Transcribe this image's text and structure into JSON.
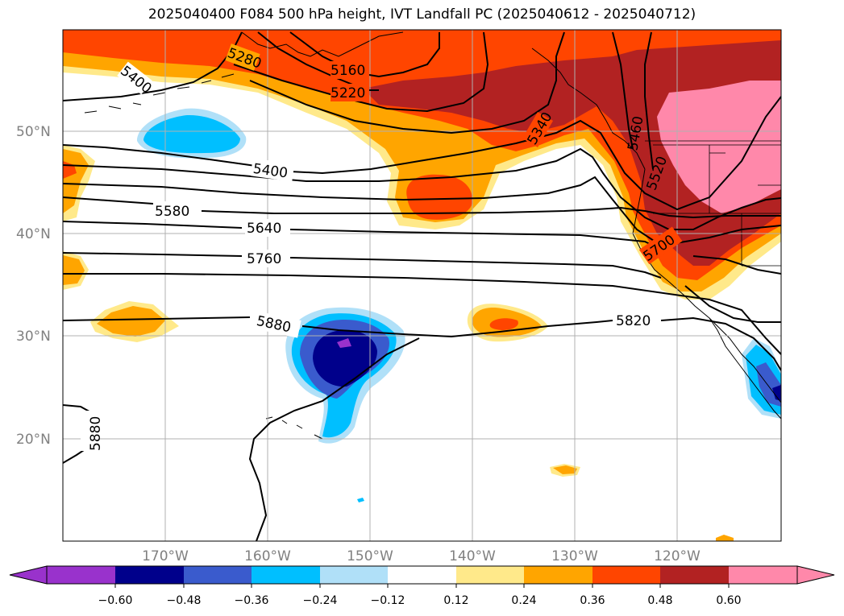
{
  "title": "2025040400 F084 500 hPa height, IVT Landfall PC (2025040612 - 2025040712)",
  "map": {
    "latitude_labels": [
      "50°N",
      "40°N",
      "30°N",
      "20°N"
    ],
    "longitude_labels": [
      "170°W",
      "160°W",
      "150°W",
      "140°W",
      "130°W",
      "120°W"
    ],
    "height_contour_labels": [
      "5400",
      "5280",
      "5160",
      "5220",
      "5340",
      "5460",
      "5520",
      "5400",
      "5580",
      "5640",
      "5700",
      "5760",
      "5880",
      "5820",
      "5880"
    ],
    "gridlines": true
  },
  "colorbar": {
    "tick_labels": [
      "−0.60",
      "−0.48",
      "−0.36",
      "−0.24",
      "−0.12",
      "0.12",
      "0.24",
      "0.36",
      "0.48",
      "0.60"
    ],
    "colors": [
      "#9932cc",
      "#00008b",
      "#3a5bcd",
      "#00bfff",
      "#b0e0f8",
      "#ffffff",
      "#ffe98a",
      "#ffa500",
      "#ff4500",
      "#b22222",
      "#ff88aa",
      "#ff88aa"
    ]
  },
  "colors": {
    "positive_light": "#ffe98a",
    "positive_orange": "#ffa500",
    "positive_red": "#ff4500",
    "positive_darkred": "#b22222",
    "positive_pink": "#ff88aa",
    "negative_light": "#b0e0f8",
    "negative_cyan": "#00bfff",
    "negative_blue": "#3a5bcd",
    "negative_navy": "#00008b",
    "negative_purple": "#9932cc"
  }
}
